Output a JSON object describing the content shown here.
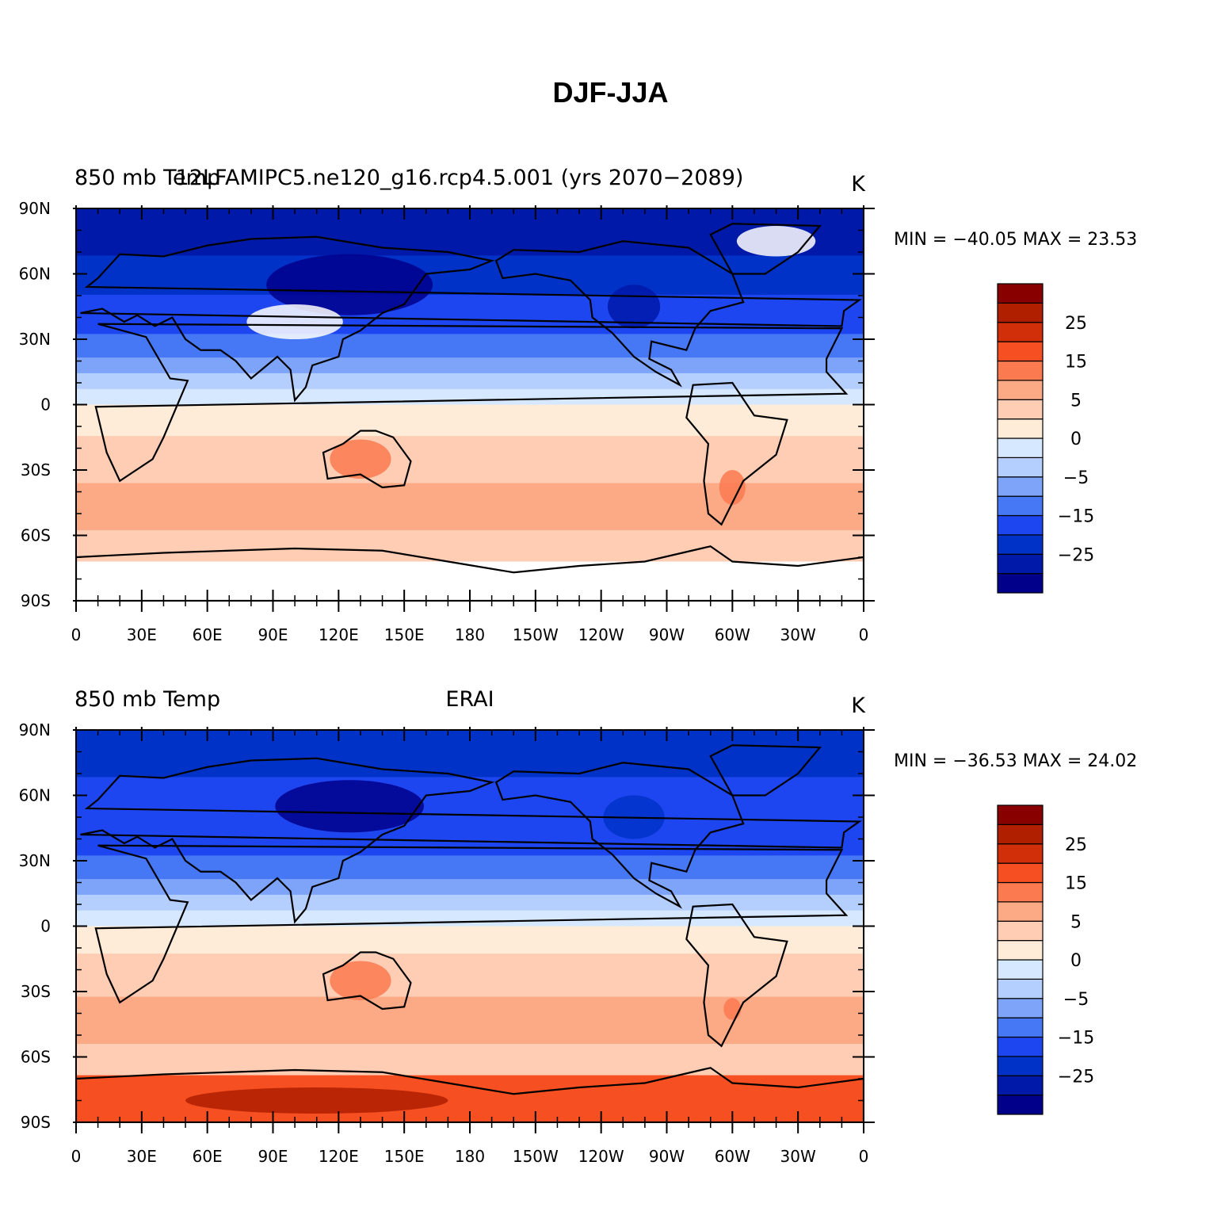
{
  "title": "DJF-JJA",
  "colorbar_colors": [
    "#00008b",
    "#0019a9",
    "#0032c8",
    "#1e46f0",
    "#4678f5",
    "#7ea4fa",
    "#b4cefe",
    "#d6e8ff",
    "#ffecd8",
    "#ffcdb4",
    "#fca986",
    "#fb7a50",
    "#f64f21",
    "#d12e0a",
    "#af1f00",
    "#880000"
  ],
  "colorbar_labels": [
    "-25",
    "-15",
    "-5",
    "0",
    "5",
    "15",
    "25"
  ],
  "colorbar_label_box_index": [
    2,
    4,
    6,
    8,
    10,
    12,
    14
  ],
  "lat_ticks": [
    "90N",
    "60N",
    "30N",
    "0",
    "30S",
    "60S",
    "90S"
  ],
  "lon_ticks": [
    "0",
    "30E",
    "60E",
    "90E",
    "120E",
    "150E",
    "180",
    "150W",
    "120W",
    "90W",
    "60W",
    "30W",
    "0"
  ],
  "panels": [
    {
      "left_label": "850 mb Temp",
      "center_label": "12LFAMIPC5.ne120_g16.rcp4.5.001 (yrs 2070-2089)",
      "units": "K",
      "min_label": "MIN =",
      "min_value": "-40.05",
      "max_label": "MAX =",
      "max_value": "23.53"
    },
    {
      "left_label": "850 mb Temp",
      "center_label": "ERAI",
      "units": "K",
      "min_label": "MIN =",
      "min_value": "-36.53",
      "max_label": "MAX =",
      "max_value": "24.02"
    }
  ]
}
